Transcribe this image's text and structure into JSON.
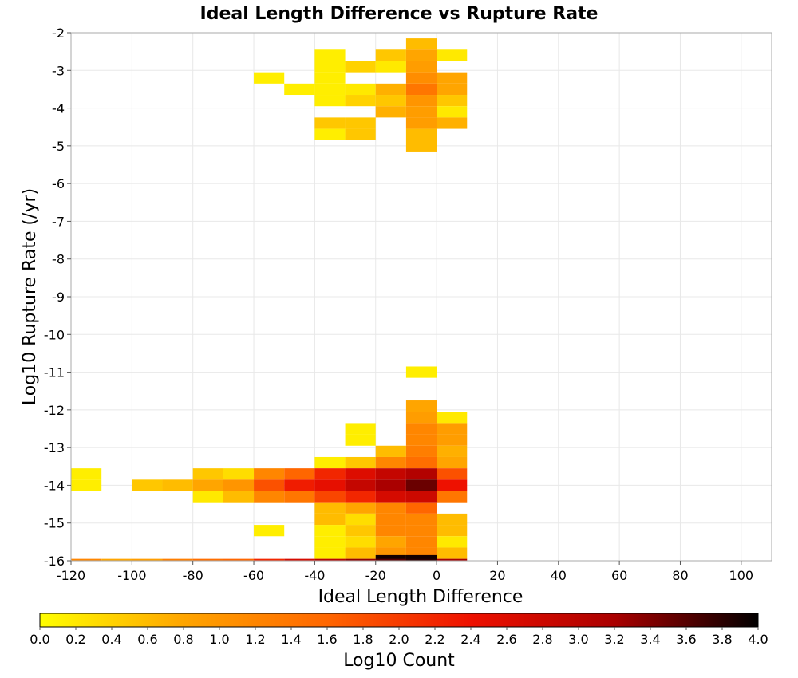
{
  "chart_data": {
    "type": "heatmap",
    "title": "Ideal Length Difference vs Rupture Rate",
    "xlabel": "Ideal Length Difference",
    "ylabel": "Log10 Rupture Rate (/yr)",
    "colorbar_label": "Log10 Count",
    "xlim": [
      -120,
      110
    ],
    "ylim": [
      -16,
      -2
    ],
    "x_ticks": [
      -120,
      -100,
      -80,
      -60,
      -40,
      -20,
      0,
      20,
      40,
      60,
      80,
      100
    ],
    "y_ticks": [
      -2,
      -3,
      -4,
      -5,
      -6,
      -7,
      -8,
      -9,
      -10,
      -11,
      -12,
      -13,
      -14,
      -15,
      -16
    ],
    "colorbar_range": [
      0,
      4
    ],
    "colorbar_ticks": [
      "0.0",
      "0.2",
      "0.4",
      "0.6",
      "0.8",
      "1.0",
      "1.2",
      "1.4",
      "1.6",
      "1.8",
      "2.0",
      "2.2",
      "2.4",
      "2.6",
      "2.8",
      "3.0",
      "3.2",
      "3.4",
      "3.6",
      "3.8",
      "4.0"
    ],
    "colormap": [
      "#ffff00",
      "#ffa500",
      "#ff6600",
      "#ee1100",
      "#aa0000",
      "#000000"
    ],
    "bin_width_x": 10,
    "bin_height_y": 0.3,
    "grid": true,
    "cells": [
      {
        "x": -10,
        "y": -2.3,
        "v": 0.6
      },
      {
        "x": -40,
        "y": -2.6,
        "v": 0.15
      },
      {
        "x": -20,
        "y": -2.6,
        "v": 0.5
      },
      {
        "x": -10,
        "y": -2.6,
        "v": 0.8
      },
      {
        "x": 0,
        "y": -2.6,
        "v": 0.2
      },
      {
        "x": -40,
        "y": -2.9,
        "v": 0.15
      },
      {
        "x": -30,
        "y": -2.9,
        "v": 0.4
      },
      {
        "x": -20,
        "y": -2.9,
        "v": 0.2
      },
      {
        "x": -10,
        "y": -2.9,
        "v": 0.9
      },
      {
        "x": -60,
        "y": -3.2,
        "v": 0.15
      },
      {
        "x": -40,
        "y": -3.2,
        "v": 0.15
      },
      {
        "x": -10,
        "y": -3.2,
        "v": 1.1
      },
      {
        "x": 0,
        "y": -3.2,
        "v": 0.8
      },
      {
        "x": -50,
        "y": -3.5,
        "v": 0.15
      },
      {
        "x": -40,
        "y": -3.5,
        "v": 0.15
      },
      {
        "x": -30,
        "y": -3.5,
        "v": 0.2
      },
      {
        "x": -20,
        "y": -3.5,
        "v": 0.7
      },
      {
        "x": -10,
        "y": -3.5,
        "v": 1.4
      },
      {
        "x": 0,
        "y": -3.5,
        "v": 0.8
      },
      {
        "x": -40,
        "y": -3.8,
        "v": 0.15
      },
      {
        "x": -30,
        "y": -3.8,
        "v": 0.4
      },
      {
        "x": -20,
        "y": -3.8,
        "v": 0.5
      },
      {
        "x": -10,
        "y": -3.8,
        "v": 1.0
      },
      {
        "x": 0,
        "y": -3.8,
        "v": 0.5
      },
      {
        "x": -20,
        "y": -4.1,
        "v": 0.7
      },
      {
        "x": -10,
        "y": -4.1,
        "v": 0.9
      },
      {
        "x": 0,
        "y": -4.1,
        "v": 0.2
      },
      {
        "x": -40,
        "y": -4.4,
        "v": 0.5
      },
      {
        "x": -30,
        "y": -4.4,
        "v": 0.5
      },
      {
        "x": -10,
        "y": -4.4,
        "v": 0.9
      },
      {
        "x": 0,
        "y": -4.4,
        "v": 0.7
      },
      {
        "x": -40,
        "y": -4.7,
        "v": 0.15
      },
      {
        "x": -30,
        "y": -4.7,
        "v": 0.5
      },
      {
        "x": -10,
        "y": -4.7,
        "v": 0.6
      },
      {
        "x": -10,
        "y": -5.0,
        "v": 0.6
      },
      {
        "x": -10,
        "y": -11.0,
        "v": 0.15
      },
      {
        "x": -10,
        "y": -11.9,
        "v": 0.8
      },
      {
        "x": -10,
        "y": -12.2,
        "v": 0.9
      },
      {
        "x": 0,
        "y": -12.2,
        "v": 0.2
      },
      {
        "x": -10,
        "y": -12.5,
        "v": 1.2
      },
      {
        "x": 0,
        "y": -12.5,
        "v": 0.9
      },
      {
        "x": -30,
        "y": -12.5,
        "v": 0.15
      },
      {
        "x": -30,
        "y": -12.8,
        "v": 0.15
      },
      {
        "x": -10,
        "y": -12.8,
        "v": 1.2
      },
      {
        "x": 0,
        "y": -12.8,
        "v": 0.9
      },
      {
        "x": -20,
        "y": -13.1,
        "v": 0.6
      },
      {
        "x": -10,
        "y": -13.1,
        "v": 1.3
      },
      {
        "x": 0,
        "y": -13.1,
        "v": 0.7
      },
      {
        "x": -40,
        "y": -13.4,
        "v": 0.15
      },
      {
        "x": -30,
        "y": -13.4,
        "v": 0.5
      },
      {
        "x": -20,
        "y": -13.4,
        "v": 1.2
      },
      {
        "x": -10,
        "y": -13.4,
        "v": 1.5
      },
      {
        "x": 0,
        "y": -13.4,
        "v": 0.8
      },
      {
        "x": -120,
        "y": -13.7,
        "v": 0.15
      },
      {
        "x": -80,
        "y": -13.7,
        "v": 0.5
      },
      {
        "x": -70,
        "y": -13.7,
        "v": 0.3
      },
      {
        "x": -60,
        "y": -13.7,
        "v": 1.2
      },
      {
        "x": -50,
        "y": -13.7,
        "v": 1.6
      },
      {
        "x": -40,
        "y": -13.7,
        "v": 2.2
      },
      {
        "x": -30,
        "y": -13.7,
        "v": 2.6
      },
      {
        "x": -20,
        "y": -13.7,
        "v": 2.9
      },
      {
        "x": -10,
        "y": -13.7,
        "v": 3.1
      },
      {
        "x": 0,
        "y": -13.7,
        "v": 1.8
      },
      {
        "x": -120,
        "y": -14.0,
        "v": 0.15
      },
      {
        "x": -100,
        "y": -14.0,
        "v": 0.5
      },
      {
        "x": -90,
        "y": -14.0,
        "v": 0.6
      },
      {
        "x": -80,
        "y": -14.0,
        "v": 0.8
      },
      {
        "x": -70,
        "y": -14.0,
        "v": 1.0
      },
      {
        "x": -60,
        "y": -14.0,
        "v": 1.8
      },
      {
        "x": -50,
        "y": -14.0,
        "v": 2.3
      },
      {
        "x": -40,
        "y": -14.0,
        "v": 2.5
      },
      {
        "x": -30,
        "y": -14.0,
        "v": 2.9
      },
      {
        "x": -20,
        "y": -14.0,
        "v": 3.2
      },
      {
        "x": -10,
        "y": -14.0,
        "v": 3.5
      },
      {
        "x": 0,
        "y": -14.0,
        "v": 2.4
      },
      {
        "x": -80,
        "y": -14.3,
        "v": 0.2
      },
      {
        "x": -70,
        "y": -14.3,
        "v": 0.6
      },
      {
        "x": -60,
        "y": -14.3,
        "v": 1.2
      },
      {
        "x": -50,
        "y": -14.3,
        "v": 1.4
      },
      {
        "x": -40,
        "y": -14.3,
        "v": 1.9
      },
      {
        "x": -30,
        "y": -14.3,
        "v": 2.2
      },
      {
        "x": -20,
        "y": -14.3,
        "v": 2.7
      },
      {
        "x": -10,
        "y": -14.3,
        "v": 2.8
      },
      {
        "x": 0,
        "y": -14.3,
        "v": 1.4
      },
      {
        "x": -40,
        "y": -14.6,
        "v": 0.6
      },
      {
        "x": -30,
        "y": -14.6,
        "v": 0.8
      },
      {
        "x": -20,
        "y": -14.6,
        "v": 1.2
      },
      {
        "x": -10,
        "y": -14.6,
        "v": 1.6
      },
      {
        "x": -40,
        "y": -14.9,
        "v": 0.6
      },
      {
        "x": -30,
        "y": -14.9,
        "v": 0.3
      },
      {
        "x": -20,
        "y": -14.9,
        "v": 1.2
      },
      {
        "x": -10,
        "y": -14.9,
        "v": 1.2
      },
      {
        "x": 0,
        "y": -14.9,
        "v": 0.6
      },
      {
        "x": -30,
        "y": -15.2,
        "v": 0.5
      },
      {
        "x": -20,
        "y": -15.2,
        "v": 1.2
      },
      {
        "x": -10,
        "y": -15.2,
        "v": 1.2
      },
      {
        "x": 0,
        "y": -15.2,
        "v": 0.6
      },
      {
        "x": -60,
        "y": -15.2,
        "v": 0.15
      },
      {
        "x": -40,
        "y": -15.2,
        "v": 0.15
      },
      {
        "x": -30,
        "y": -15.5,
        "v": 0.3
      },
      {
        "x": -20,
        "y": -15.5,
        "v": 0.8
      },
      {
        "x": -10,
        "y": -15.5,
        "v": 1.2
      },
      {
        "x": 0,
        "y": -15.5,
        "v": 0.2
      },
      {
        "x": -40,
        "y": -15.5,
        "v": 0.15
      },
      {
        "x": -40,
        "y": -15.8,
        "v": 0.15
      },
      {
        "x": -30,
        "y": -15.8,
        "v": 0.6
      },
      {
        "x": -20,
        "y": -15.8,
        "v": 1.0
      },
      {
        "x": -10,
        "y": -15.8,
        "v": 1.2
      },
      {
        "x": 0,
        "y": -15.8,
        "v": 0.6
      },
      {
        "x": -20,
        "y": -16.0,
        "v": 3.9
      },
      {
        "x": -10,
        "y": -16.0,
        "v": 3.9
      },
      {
        "x": -120,
        "y": -16.1,
        "v": 1.2
      },
      {
        "x": -110,
        "y": -16.1,
        "v": 0.8
      },
      {
        "x": -100,
        "y": -16.1,
        "v": 0.9
      },
      {
        "x": -90,
        "y": -16.1,
        "v": 1.3
      },
      {
        "x": -80,
        "y": -16.1,
        "v": 1.5
      },
      {
        "x": -70,
        "y": -16.1,
        "v": 1.6
      },
      {
        "x": -60,
        "y": -16.1,
        "v": 2.2
      },
      {
        "x": -50,
        "y": -16.1,
        "v": 2.7
      },
      {
        "x": -40,
        "y": -16.1,
        "v": 3.0
      },
      {
        "x": -30,
        "y": -16.1,
        "v": 3.3
      },
      {
        "x": -20,
        "y": -16.1,
        "v": 3.6
      },
      {
        "x": -10,
        "y": -16.1,
        "v": 3.8
      },
      {
        "x": 0,
        "y": -16.1,
        "v": 3.2
      }
    ]
  }
}
